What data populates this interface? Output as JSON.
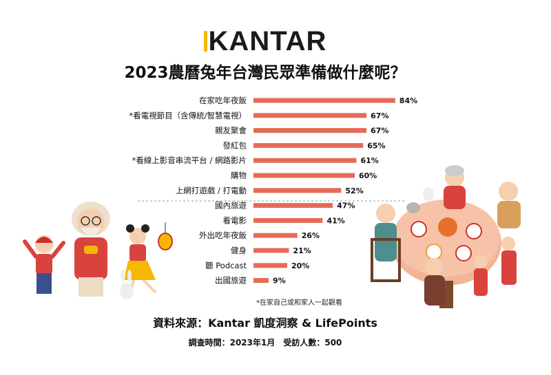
{
  "logo": "KANTAR",
  "title": "2023農曆兔年台灣民眾準備做什麼呢？",
  "footnote": "*在家自己或和家人一起觀看",
  "source": "資料來源：Kantar 凱度洞察 & LifePoints",
  "survey": "調查時間：2023年1月　受訪人數：500",
  "colors": {
    "bar": "#e56b57",
    "accent": "#f5b800"
  },
  "chart_data": {
    "type": "bar",
    "orientation": "horizontal",
    "title": "2023農曆兔年台灣民眾準備做什麼呢？",
    "categories": [
      "在家吃年夜飯",
      "*看電視節目（含傳統/智慧電視）",
      "親友聚會",
      "發紅包",
      "*看線上影音串流平台 / 網路影片",
      "購物",
      "上網打遊戲 / 打電動",
      "國內旅遊",
      "看電影",
      "外出吃年夜飯",
      "健身",
      "聽 Podcast",
      "出國旅遊"
    ],
    "values": [
      84,
      67,
      67,
      65,
      61,
      60,
      52,
      47,
      41,
      26,
      21,
      20,
      9
    ],
    "value_labels": [
      "84%",
      "67%",
      "67%",
      "65%",
      "61%",
      "60%",
      "52%",
      "47%",
      "41%",
      "26%",
      "21%",
      "20%",
      "9%"
    ],
    "unit": "%",
    "xlim": [
      0,
      100
    ],
    "grid": false,
    "legend": "none"
  }
}
